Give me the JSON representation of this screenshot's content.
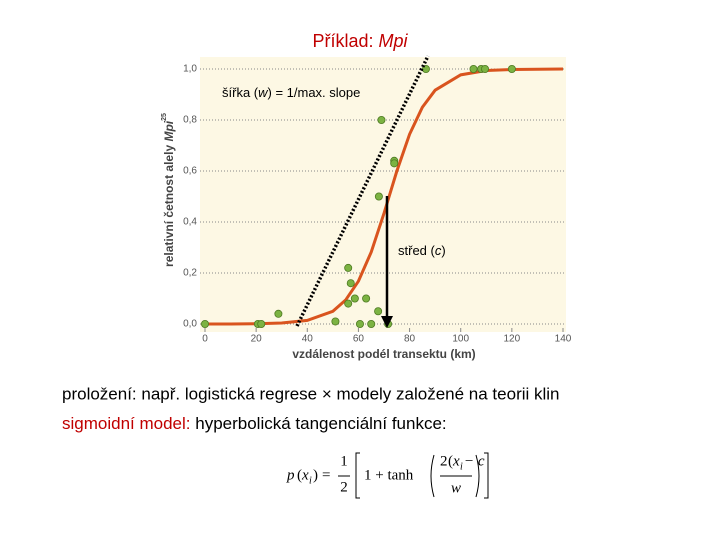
{
  "title": {
    "text": "Příklad:",
    "italic": "Mpi"
  },
  "chart_data": {
    "type": "scatter",
    "xlabel": "vzdálenost podél transektu (km)",
    "ylabel": {
      "text": "relativní četnost alely",
      "italic": "Mpi",
      "sup": "25"
    },
    "xlim": [
      0,
      140
    ],
    "xticks": [
      0,
      20,
      40,
      60,
      80,
      100,
      120,
      140
    ],
    "ylim": [
      0,
      1
    ],
    "yticks": [
      {
        "value": 0,
        "label": "0,0"
      },
      {
        "value": 0.2,
        "label": "0,2"
      },
      {
        "value": 0.4,
        "label": "0,4"
      },
      {
        "value": 0.6,
        "label": "0,6"
      },
      {
        "value": 0.8,
        "label": "0,8"
      },
      {
        "value": 1,
        "label": "1,0"
      }
    ],
    "grid": true,
    "points": {
      "color": "#7cb342",
      "x": [
        0,
        20.7,
        22,
        28.7,
        51,
        56,
        57,
        56,
        58.6,
        63,
        65,
        60.6,
        71.6,
        67.7,
        68,
        69,
        74,
        74,
        86.4,
        105,
        108,
        109.5,
        120
      ],
      "y": [
        0,
        0,
        0,
        0.04,
        0.01,
        0.22,
        0.16,
        0.08,
        0.1,
        0.1,
        0,
        0,
        0,
        0.05,
        0.5,
        0.8,
        0.64,
        0.63,
        1,
        1,
        1,
        1,
        1
      ]
    },
    "curve": {
      "color": "#d9541e",
      "x": [
        0,
        10,
        20,
        30,
        40,
        50,
        55,
        60,
        65,
        70,
        72,
        75,
        80,
        85,
        90,
        100,
        110,
        120,
        140
      ],
      "y": [
        0,
        0,
        0.001,
        0.004,
        0.014,
        0.05,
        0.094,
        0.168,
        0.282,
        0.434,
        0.5,
        0.599,
        0.744,
        0.85,
        0.917,
        0.977,
        0.994,
        0.998,
        1
      ]
    },
    "annotations": [
      [
        "šířka (",
        "w",
        ") = 1/max. slope"
      ],
      [
        "střed (",
        "c",
        ")"
      ]
    ]
  },
  "body": {
    "line1": "proložení: např. logistická regrese × modely založené na teorii klin",
    "line2_red": "sigmoidní model:",
    "line2": "hyperbolická tangenciální funkce:"
  },
  "formula": {
    "p": "p",
    "x": "x",
    "i": "i",
    "eq": "=",
    "num": "1",
    "den": "2",
    "tanh": "1 + tanh",
    "inner_num": "2",
    "inner_x": "x",
    "inner_i": "i",
    "inner_c": "− c",
    "inner_den": "w"
  }
}
